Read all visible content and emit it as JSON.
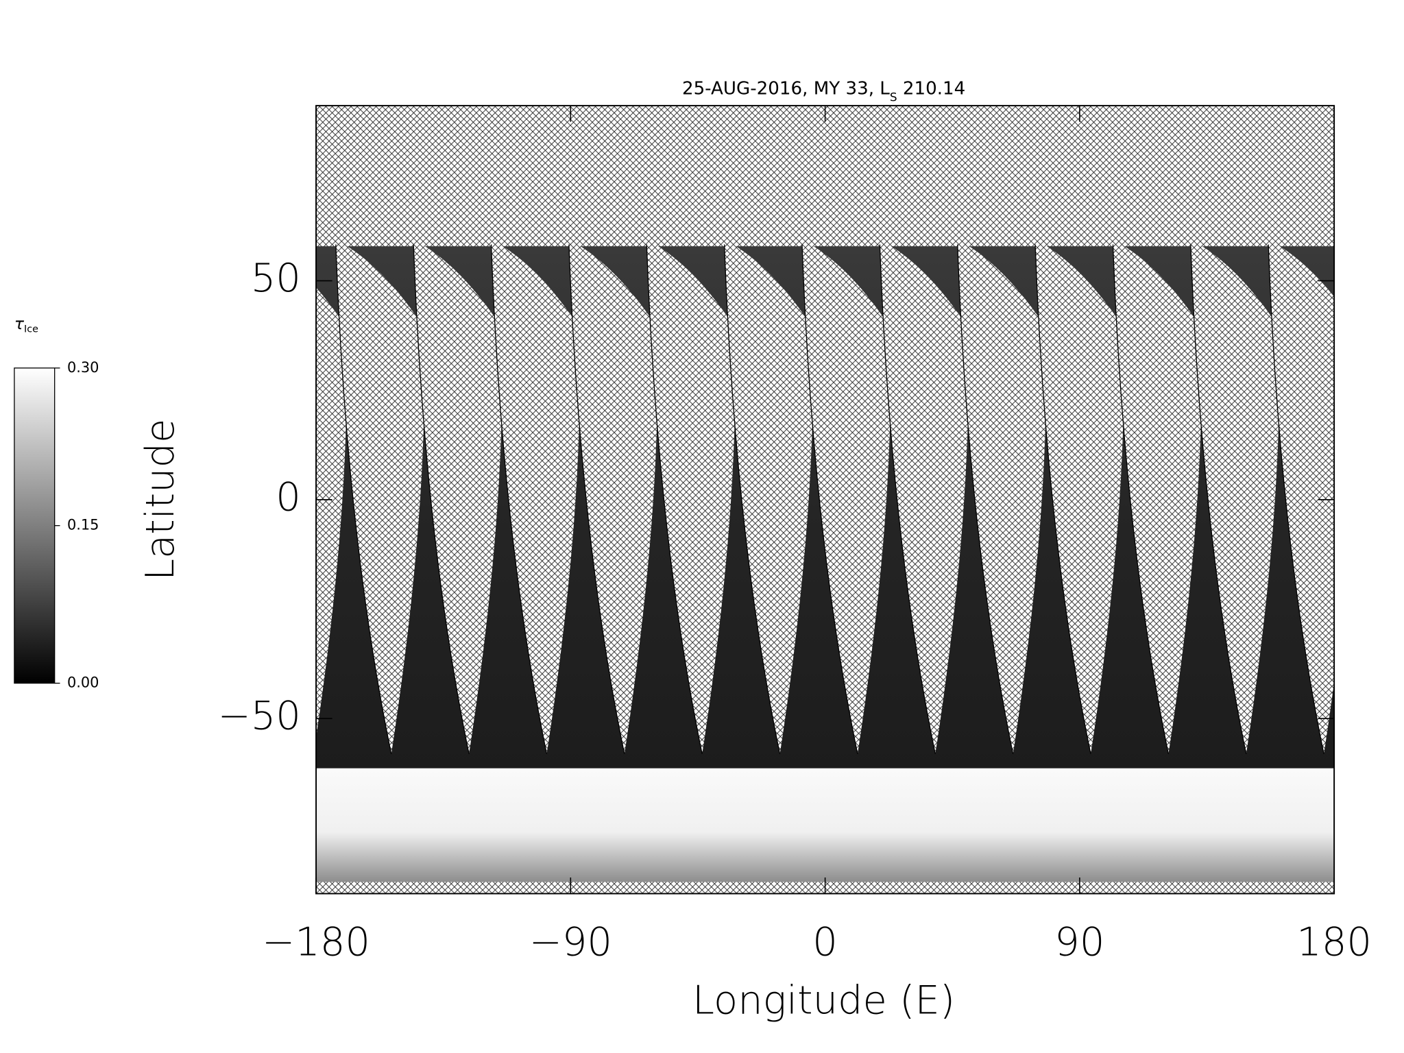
{
  "chart_data": {
    "type": "map",
    "title_parts": [
      "25-AUG-2016, MY 33,  L",
      "S",
      " 210.14"
    ],
    "x_label": "Longitude (E)",
    "y_label": "Latitude",
    "xlim": [
      -180,
      180
    ],
    "ylim": [
      -90,
      90
    ],
    "xticks": [
      {
        "value": -180,
        "label": "−180"
      },
      {
        "value": -90,
        "label": "−90"
      },
      0,
      90,
      180
    ],
    "yticks": [
      {
        "value": -50,
        "label": "−50"
      },
      0,
      50
    ],
    "colorbar": {
      "label": "τ",
      "label_subscript": "Ice",
      "clim": [
        0,
        0.3
      ],
      "cticks": [
        {
          "value": 0,
          "label": "0.00"
        },
        {
          "value": 0.15,
          "label": "0.15"
        },
        {
          "value": 0.3,
          "label": "0.30"
        }
      ],
      "colors": [
        "#000000",
        "#ffffff"
      ]
    }
  }
}
